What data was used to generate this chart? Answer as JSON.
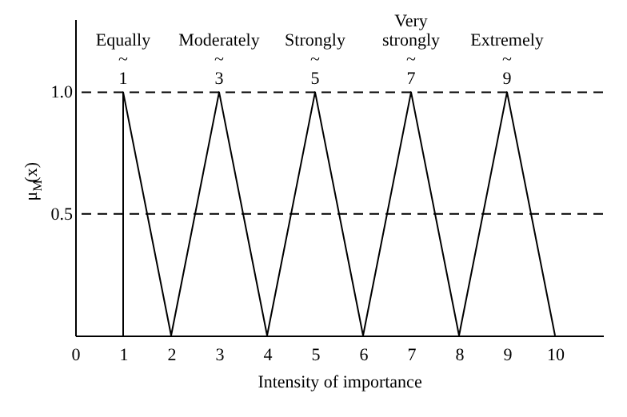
{
  "chart_data": {
    "type": "line",
    "xlabel": "Intensity of importance",
    "ylabel": "μ$_{M}$(x)",
    "xlim": [
      0,
      11
    ],
    "xticks": [
      0,
      1,
      2,
      3,
      4,
      5,
      6,
      7,
      8,
      9,
      10
    ],
    "ylim": [
      0,
      1.3
    ],
    "yticks": [
      0.5,
      {
        "value": 1.0,
        "label": "1.0"
      }
    ],
    "series": [
      {
        "color": "#000000",
        "x": [
          1,
          1,
          2,
          3,
          4,
          5,
          6,
          7,
          8,
          9,
          10
        ],
        "values": [
          0,
          1,
          0,
          1,
          0,
          1,
          0,
          1,
          0,
          1,
          0
        ]
      }
    ],
    "ref_lines": [
      {
        "axis": "y",
        "value": 0.5,
        "line_style": "dashed"
      },
      {
        "axis": "y",
        "value": 1.0,
        "line_style": "dashed"
      }
    ],
    "annotations": [
      {
        "text": "Equally\n~\n1",
        "x": 1,
        "y": 1.0
      },
      {
        "text": "Moderately\n~\n3",
        "x": 3,
        "y": 1.0
      },
      {
        "text": "Strongly\n~\n5",
        "x": 5,
        "y": 1.0
      },
      {
        "text": "Very\nstrongly\n~\n7",
        "x": 7,
        "y": 1.0
      },
      {
        "text": "Extremely\n~\n9",
        "x": 9,
        "y": 1.0
      }
    ],
    "grid": false,
    "marker": "none",
    "line_style": "solid"
  }
}
